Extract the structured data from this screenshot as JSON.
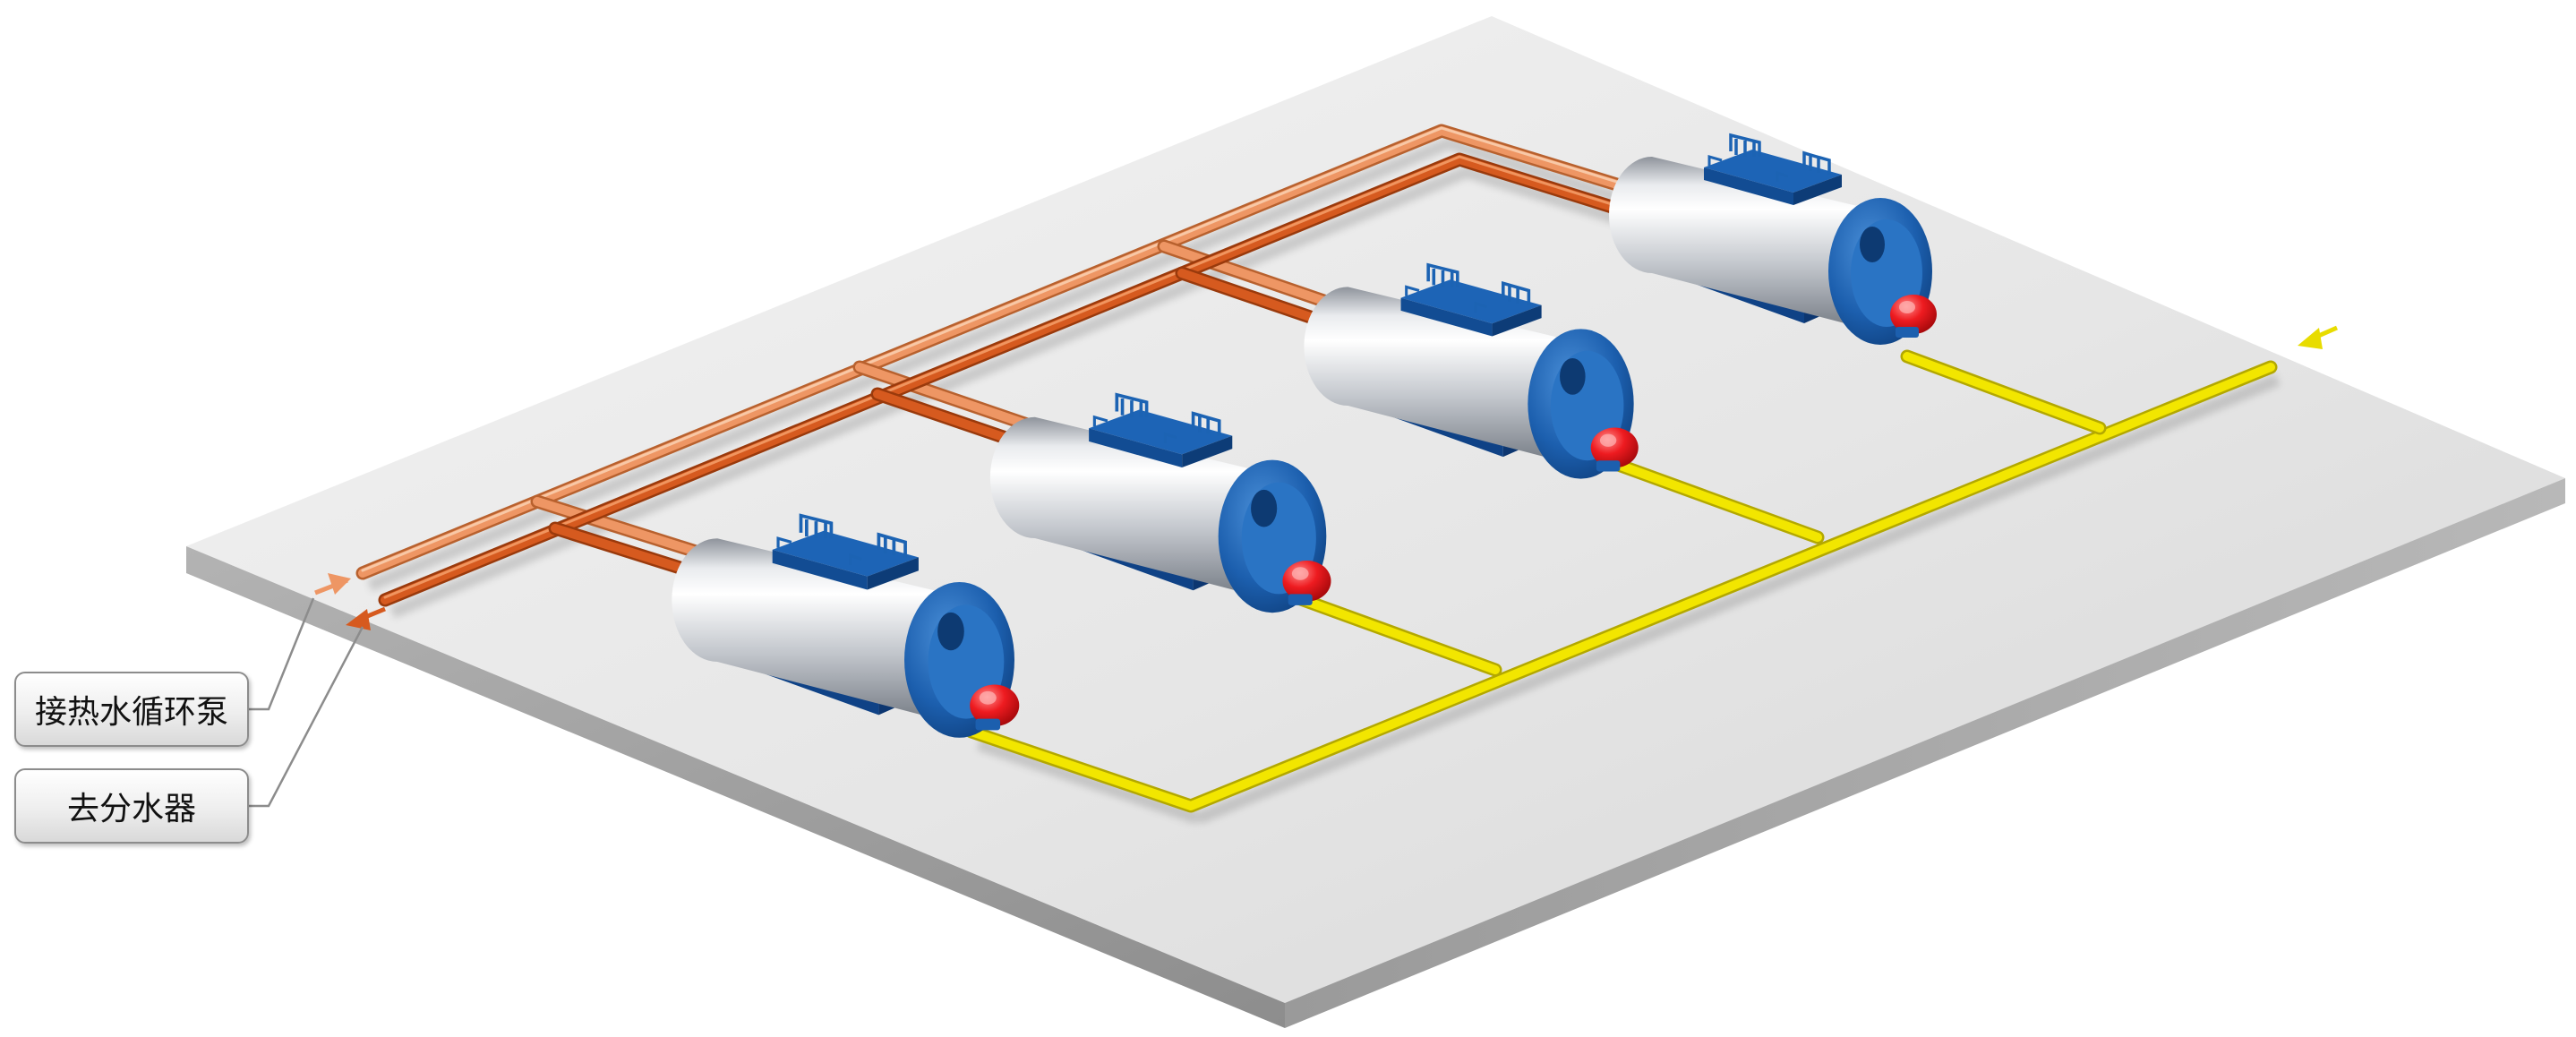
{
  "callouts": {
    "return_to_pump": "接热水循环泵",
    "to_distributor": "去分水器"
  },
  "colors": {
    "supply_pipe": "#e98d5a",
    "return_pipe": "#d2571f",
    "gas_pipe": "#ece200",
    "boiler_body": "#c9ccd1",
    "boiler_trim": "#1f66b5",
    "burner": "#e8141a",
    "platform_top": "#e4e4e4",
    "platform_side": "#a4a4a4"
  },
  "components": {
    "boiler_count": 4,
    "boiler_icon": "horizontal-fire-tube-boiler-icon",
    "burner_icon": "gas-burner-icon",
    "arrow_icon": "flow-arrow-icon"
  }
}
